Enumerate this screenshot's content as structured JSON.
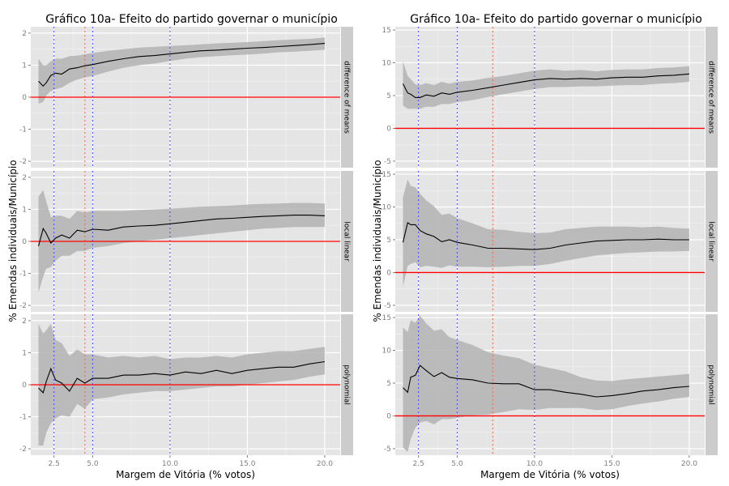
{
  "chart_data": [
    {
      "type": "line",
      "title": "Gráfico 10a- Efeito do partido governar o município",
      "xlabel": "Margem de Vitória (% votos)",
      "ylabel": "% Emendas individuais/Município",
      "x_ticks": [
        "2.5",
        "5.0",
        "10.0",
        "15.0",
        "20.0"
      ],
      "xlim": [
        1.0,
        21.0
      ],
      "vlines": [
        {
          "x": 2.5,
          "color": "#4444ff"
        },
        {
          "x": 4.5,
          "color": "#e8684c"
        },
        {
          "x": 5.0,
          "color": "#4444ff"
        },
        {
          "x": 10.0,
          "color": "#4444ff"
        }
      ],
      "hline": {
        "y": 0,
        "color": "#ff0000"
      },
      "panels": [
        {
          "strip": "difference of means",
          "ylim": [
            -2.2,
            2.2
          ],
          "y_ticks": [
            "-2",
            "-1",
            "0",
            "1",
            "2"
          ],
          "x": [
            1.5,
            1.8,
            2.0,
            2.3,
            2.6,
            3.0,
            3.5,
            4.0,
            4.5,
            5.0,
            6.0,
            7.0,
            8.0,
            9.0,
            10.0,
            11.0,
            12.0,
            13.0,
            14.0,
            15.0,
            16.0,
            17.0,
            18.0,
            19.0,
            20.0
          ],
          "y": [
            0.5,
            0.35,
            0.45,
            0.68,
            0.75,
            0.72,
            0.88,
            0.92,
            0.98,
            1.02,
            1.12,
            1.2,
            1.27,
            1.3,
            1.35,
            1.4,
            1.45,
            1.47,
            1.5,
            1.53,
            1.55,
            1.58,
            1.61,
            1.64,
            1.68
          ],
          "lower": [
            -0.2,
            -0.15,
            0.05,
            0.2,
            0.25,
            0.3,
            0.45,
            0.55,
            0.62,
            0.66,
            0.8,
            0.92,
            1.0,
            1.05,
            1.13,
            1.2,
            1.25,
            1.28,
            1.31,
            1.33,
            1.36,
            1.4,
            1.42,
            1.45,
            1.48
          ],
          "upper": [
            1.2,
            1.0,
            1.0,
            1.12,
            1.2,
            1.2,
            1.28,
            1.3,
            1.34,
            1.38,
            1.45,
            1.5,
            1.55,
            1.57,
            1.6,
            1.62,
            1.65,
            1.68,
            1.7,
            1.72,
            1.75,
            1.78,
            1.8,
            1.82,
            1.86
          ]
        },
        {
          "strip": "local linear",
          "ylim": [
            -2.2,
            2.2
          ],
          "y_ticks": [
            "-2",
            "-1",
            "0",
            "1",
            "2"
          ],
          "x": [
            1.5,
            1.8,
            2.0,
            2.3,
            2.6,
            3.0,
            3.5,
            4.0,
            4.5,
            5.0,
            6.0,
            7.0,
            8.0,
            9.0,
            10.0,
            11.0,
            12.0,
            13.0,
            14.0,
            15.0,
            16.0,
            17.0,
            18.0,
            19.0,
            20.0
          ],
          "y": [
            -0.15,
            0.4,
            0.25,
            -0.05,
            0.1,
            0.2,
            0.1,
            0.35,
            0.3,
            0.38,
            0.35,
            0.45,
            0.48,
            0.5,
            0.55,
            0.6,
            0.65,
            0.7,
            0.72,
            0.75,
            0.78,
            0.8,
            0.82,
            0.82,
            0.8
          ],
          "lower": [
            -1.6,
            -1.1,
            -0.85,
            -0.8,
            -0.6,
            -0.45,
            -0.45,
            -0.3,
            -0.3,
            -0.2,
            -0.15,
            -0.05,
            0.0,
            0.05,
            0.1,
            0.15,
            0.2,
            0.25,
            0.3,
            0.35,
            0.4,
            0.42,
            0.45,
            0.45,
            0.45
          ],
          "upper": [
            1.4,
            1.6,
            1.25,
            0.75,
            0.8,
            0.8,
            0.7,
            0.95,
            0.9,
            0.95,
            0.95,
            0.95,
            0.98,
            1.0,
            1.02,
            1.05,
            1.08,
            1.1,
            1.12,
            1.15,
            1.17,
            1.18,
            1.2,
            1.2,
            1.18
          ]
        },
        {
          "strip": "polynomial",
          "ylim": [
            -2.2,
            2.2
          ],
          "y_ticks": [
            "-2",
            "-1",
            "0",
            "1",
            "2"
          ],
          "x": [
            1.5,
            1.8,
            2.0,
            2.3,
            2.6,
            3.0,
            3.5,
            4.0,
            4.5,
            5.0,
            6.0,
            7.0,
            8.0,
            9.0,
            10.0,
            11.0,
            12.0,
            13.0,
            14.0,
            15.0,
            16.0,
            17.0,
            18.0,
            19.0,
            20.0
          ],
          "y": [
            -0.1,
            -0.25,
            0.1,
            0.5,
            0.15,
            0.05,
            -0.2,
            0.2,
            0.05,
            0.2,
            0.2,
            0.3,
            0.3,
            0.35,
            0.3,
            0.4,
            0.35,
            0.45,
            0.35,
            0.45,
            0.5,
            0.55,
            0.55,
            0.65,
            0.72
          ],
          "lower": [
            -1.9,
            -1.9,
            -1.5,
            -1.2,
            -1.05,
            -0.95,
            -1.0,
            -0.6,
            -0.75,
            -0.45,
            -0.4,
            -0.3,
            -0.25,
            -0.2,
            -0.2,
            -0.15,
            -0.1,
            -0.05,
            -0.05,
            0.0,
            0.05,
            0.1,
            0.15,
            0.25,
            0.32
          ],
          "upper": [
            1.9,
            1.6,
            1.7,
            1.9,
            1.4,
            1.3,
            0.9,
            1.1,
            0.95,
            0.95,
            0.85,
            0.9,
            0.85,
            0.9,
            0.8,
            0.85,
            0.85,
            0.9,
            0.85,
            0.95,
            1.0,
            1.05,
            1.05,
            1.12,
            1.18
          ]
        }
      ]
    },
    {
      "type": "line",
      "title": "Gráfico 10a- Efeito do partido governar o município",
      "xlabel": "Margem de Vitória (% votos)",
      "ylabel": "% Emendas individuais/Município",
      "x_ticks": [
        "2.5",
        "5.0",
        "10.0",
        "15.0",
        "20.0"
      ],
      "xlim": [
        1.0,
        21.0
      ],
      "vlines": [
        {
          "x": 2.5,
          "color": "#4444ff"
        },
        {
          "x": 5.0,
          "color": "#4444ff"
        },
        {
          "x": 7.3,
          "color": "#e8684c"
        },
        {
          "x": 10.0,
          "color": "#4444ff"
        }
      ],
      "hline": {
        "y": 0,
        "color": "#ff0000"
      },
      "panels": [
        {
          "strip": "difference of means",
          "ylim": [
            -6.0,
            15.5
          ],
          "y_ticks": [
            "-5",
            "0",
            "5",
            "10",
            "15"
          ],
          "x": [
            1.5,
            1.8,
            2.0,
            2.3,
            2.6,
            3.0,
            3.5,
            4.0,
            4.5,
            5.0,
            6.0,
            7.0,
            8.0,
            9.0,
            10.0,
            11.0,
            12.0,
            13.0,
            14.0,
            15.0,
            16.0,
            17.0,
            18.0,
            19.0,
            20.0
          ],
          "y": [
            6.8,
            5.4,
            5.2,
            4.7,
            4.7,
            5.1,
            4.9,
            5.4,
            5.2,
            5.5,
            5.8,
            6.2,
            6.6,
            7.0,
            7.4,
            7.6,
            7.5,
            7.6,
            7.5,
            7.7,
            7.8,
            7.8,
            8.0,
            8.1,
            8.3
          ],
          "lower": [
            3.5,
            3.0,
            3.0,
            3.0,
            3.0,
            3.3,
            3.3,
            3.7,
            3.7,
            4.0,
            4.3,
            4.8,
            5.2,
            5.6,
            6.0,
            6.3,
            6.3,
            6.4,
            6.4,
            6.5,
            6.6,
            6.6,
            6.8,
            6.9,
            7.1
          ],
          "upper": [
            10.2,
            8.0,
            7.5,
            6.7,
            6.6,
            6.9,
            6.6,
            7.1,
            6.8,
            7.1,
            7.3,
            7.7,
            8.0,
            8.4,
            8.8,
            9.0,
            8.8,
            8.9,
            8.7,
            8.9,
            9.0,
            9.0,
            9.2,
            9.3,
            9.5
          ]
        },
        {
          "strip": "local linear",
          "ylim": [
            -6.0,
            15.5
          ],
          "y_ticks": [
            "-5",
            "0",
            "5",
            "10",
            "15"
          ],
          "x": [
            1.5,
            1.8,
            2.0,
            2.3,
            2.6,
            3.0,
            3.5,
            4.0,
            4.5,
            5.0,
            6.0,
            7.0,
            8.0,
            9.0,
            10.0,
            11.0,
            12.0,
            13.0,
            14.0,
            15.0,
            16.0,
            17.0,
            18.0,
            19.0,
            20.0
          ],
          "y": [
            4.6,
            7.6,
            7.3,
            7.3,
            6.4,
            5.9,
            5.5,
            4.7,
            5.0,
            4.6,
            4.2,
            3.7,
            3.7,
            3.6,
            3.5,
            3.7,
            4.2,
            4.5,
            4.8,
            4.9,
            5.0,
            5.0,
            5.1,
            5.0,
            5.0
          ],
          "lower": [
            -2.2,
            1.0,
            1.3,
            1.6,
            0.8,
            1.0,
            0.9,
            0.7,
            1.1,
            0.9,
            0.9,
            0.8,
            0.9,
            1.0,
            1.0,
            1.3,
            1.8,
            2.2,
            2.6,
            2.8,
            3.0,
            3.1,
            3.2,
            3.2,
            3.3
          ],
          "upper": [
            11.5,
            14.2,
            13.2,
            13.0,
            12.0,
            11.0,
            10.1,
            8.8,
            9.0,
            8.3,
            7.5,
            6.6,
            6.5,
            6.2,
            6.0,
            6.1,
            6.6,
            6.8,
            7.0,
            7.0,
            7.0,
            6.9,
            7.0,
            6.8,
            6.7
          ]
        },
        {
          "strip": "polynomial",
          "ylim": [
            -6.0,
            15.5
          ],
          "y_ticks": [
            "-5",
            "0",
            "5",
            "10",
            "15"
          ],
          "x": [
            1.5,
            1.8,
            2.0,
            2.3,
            2.6,
            3.0,
            3.5,
            4.0,
            4.5,
            5.0,
            6.0,
            7.0,
            8.0,
            9.0,
            10.0,
            11.0,
            12.0,
            13.0,
            14.0,
            15.0,
            16.0,
            17.0,
            18.0,
            19.0,
            20.0
          ],
          "y": [
            4.3,
            3.6,
            5.9,
            6.2,
            7.7,
            6.9,
            6.0,
            6.6,
            5.9,
            5.7,
            5.5,
            5.0,
            4.9,
            4.9,
            4.0,
            4.0,
            3.6,
            3.3,
            2.9,
            3.1,
            3.4,
            3.8,
            4.0,
            4.3,
            4.5
          ],
          "lower": [
            -4.8,
            -5.5,
            -3.5,
            -1.8,
            -1.0,
            -0.8,
            -1.3,
            -0.5,
            -0.5,
            -0.3,
            0.1,
            0.2,
            0.6,
            1.0,
            0.9,
            1.2,
            1.2,
            1.2,
            0.9,
            1.0,
            1.5,
            1.9,
            2.2,
            2.6,
            2.9
          ],
          "upper": [
            13.5,
            12.8,
            14.6,
            14.2,
            15.3,
            14.1,
            13.0,
            13.2,
            12.0,
            11.6,
            10.8,
            9.7,
            9.2,
            8.8,
            7.8,
            7.3,
            6.8,
            5.9,
            5.4,
            5.3,
            5.6,
            5.8,
            6.0,
            6.2,
            6.4
          ]
        }
      ]
    }
  ]
}
